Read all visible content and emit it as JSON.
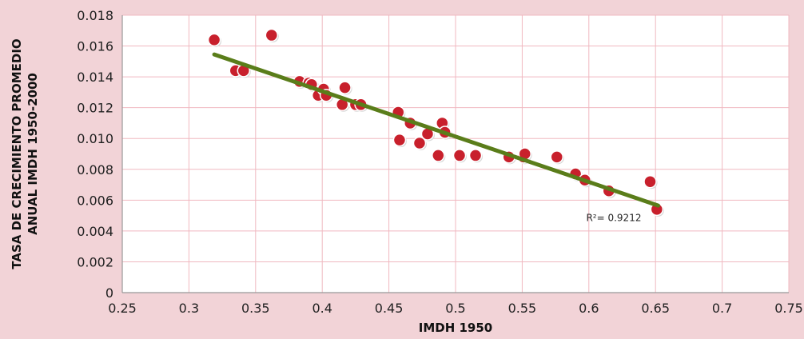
{
  "chart_data": {
    "type": "scatter",
    "xlabel": "IMDH 1950",
    "ylabel_lines": [
      "TASA DE CRECIMIENTO PROMEDIO",
      "ANUAL IMDH 1950-2000"
    ],
    "xlim": [
      0.25,
      0.75
    ],
    "ylim": [
      0,
      0.018
    ],
    "x_ticks": [
      "0.25",
      "0.3",
      "0.35",
      "0.4",
      "0.45",
      "0.5",
      "0.55",
      "0.6",
      "0.65",
      "0.7",
      "0.75"
    ],
    "y_ticks": [
      "0",
      "0.002",
      "0.004",
      "0.006",
      "0.008",
      "0.010",
      "0.012",
      "0.014",
      "0.016",
      "0.018"
    ],
    "grid": true,
    "series": [
      {
        "points": [
          [
            0.319,
            0.0164
          ],
          [
            0.335,
            0.0144
          ],
          [
            0.341,
            0.0144
          ],
          [
            0.362,
            0.0167
          ],
          [
            0.383,
            0.0137
          ],
          [
            0.39,
            0.0136
          ],
          [
            0.392,
            0.0135
          ],
          [
            0.397,
            0.0128
          ],
          [
            0.401,
            0.0132
          ],
          [
            0.403,
            0.0128
          ],
          [
            0.415,
            0.0122
          ],
          [
            0.417,
            0.0133
          ],
          [
            0.425,
            0.0122
          ],
          [
            0.429,
            0.0122
          ],
          [
            0.457,
            0.0117
          ],
          [
            0.458,
            0.0099
          ],
          [
            0.466,
            0.011
          ],
          [
            0.473,
            0.0097
          ],
          [
            0.479,
            0.0103
          ],
          [
            0.487,
            0.0089
          ],
          [
            0.49,
            0.011
          ],
          [
            0.492,
            0.0104
          ],
          [
            0.503,
            0.0089
          ],
          [
            0.515,
            0.0089
          ],
          [
            0.54,
            0.0088
          ],
          [
            0.551,
            0.0088
          ],
          [
            0.552,
            0.009
          ],
          [
            0.576,
            0.0088
          ],
          [
            0.59,
            0.0077
          ],
          [
            0.597,
            0.0073
          ],
          [
            0.615,
            0.0066
          ],
          [
            0.646,
            0.0072
          ],
          [
            0.651,
            0.0054
          ]
        ],
        "color": "#c8202c"
      }
    ],
    "trendline": {
      "x_start": 0.319,
      "y_start": 0.01545,
      "x_end": 0.652,
      "y_end": 0.00565,
      "color": "#5a7d1a"
    },
    "annotation": {
      "text": "R²= 0.9212",
      "x": 0.598,
      "y": 0.00465
    }
  }
}
